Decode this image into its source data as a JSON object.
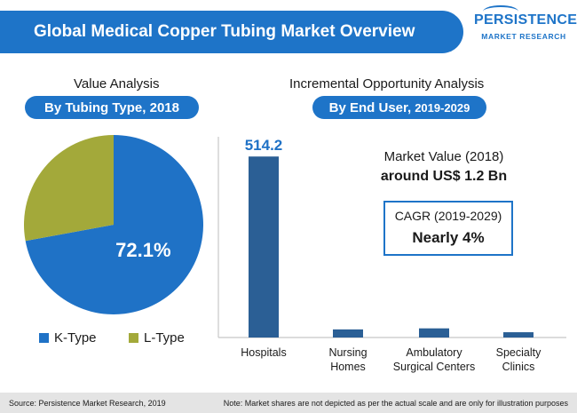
{
  "header": {
    "title": "Global Medical Copper Tubing Market Overview",
    "logo_main": "PERSISTENCE",
    "logo_sub": "MARKET RESEARCH",
    "brand_color": "#1e74c8"
  },
  "left": {
    "section_title": "Value Analysis",
    "pill": "By Tubing Type, 2018"
  },
  "right": {
    "section_title": "Incremental Opportunity Analysis",
    "pill_main": "By End User,",
    "pill_small": "2019-2029"
  },
  "market_value": {
    "label": "Market Value (2018)",
    "value": "around US$ 1.2 Bn"
  },
  "cagr": {
    "label": "CAGR (2019-2029)",
    "value": "Nearly 4%"
  },
  "footer": {
    "source": "Source: Persistence Market Research, 2019",
    "note": "Note: Market shares are not depicted as per the actual scale and are only for illustration purposes"
  },
  "chart_data": [
    {
      "type": "pie",
      "title": "By Tubing Type, 2018",
      "slices": [
        {
          "label": "K-Type",
          "value": 72.1,
          "color": "#1f72c6",
          "data_label": "72.1%"
        },
        {
          "label": "L-Type",
          "value": 27.9,
          "color": "#a3a93a"
        }
      ],
      "legend_position": "bottom"
    },
    {
      "type": "bar",
      "title": "By End User, 2019-2029",
      "categories": [
        "Hospitals",
        "Nursing Homes",
        "Ambulatory Surgical Centers",
        "Specialty Clinics"
      ],
      "category_lines": [
        [
          "Hospitals"
        ],
        [
          "Nursing",
          "Homes"
        ],
        [
          "Ambulatory",
          "Surgical Centers"
        ],
        [
          "Specialty",
          "Clinics"
        ]
      ],
      "values": [
        514.2,
        23,
        26,
        15
      ],
      "data_labels": [
        "514.2",
        "",
        "",
        ""
      ],
      "bar_color": "#2b5f95",
      "label_color": "#1f72c6",
      "ylim": [
        0,
        540
      ],
      "grid": false
    }
  ]
}
